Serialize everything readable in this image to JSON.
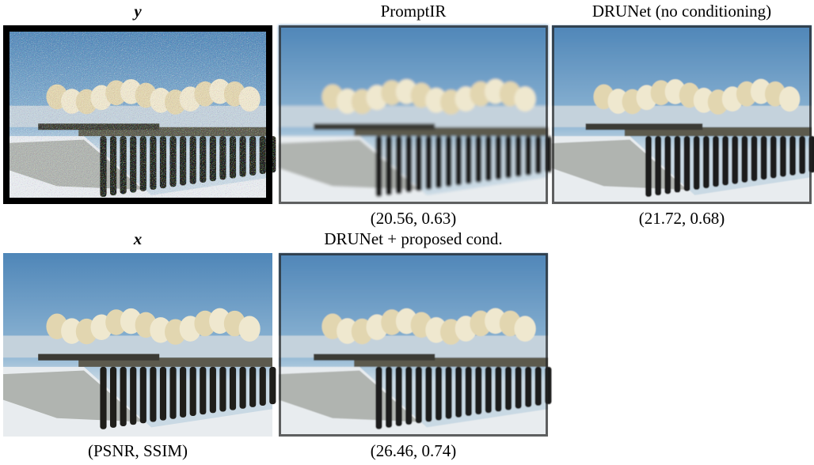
{
  "figure": {
    "panels": [
      {
        "title": "y"
      },
      {
        "title": "PromptIR",
        "caption": "(20.56, 0.63)"
      },
      {
        "title": "DRUNet (no conditioning)",
        "caption": "(21.72, 0.68)"
      },
      {
        "title": "x",
        "caption": "(PSNR, SSIM)"
      },
      {
        "title": "DRUNet + proposed cond.",
        "caption": "(26.46, 0.74)"
      }
    ]
  }
}
